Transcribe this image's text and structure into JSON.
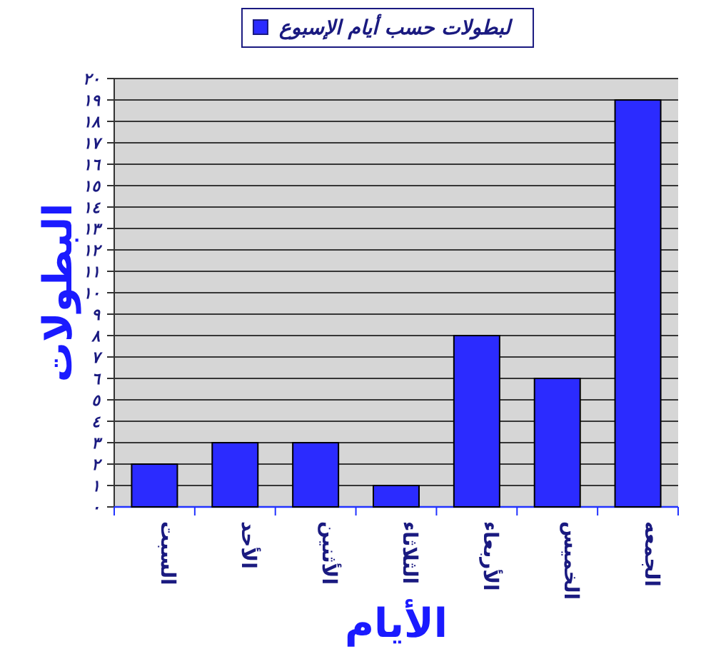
{
  "chart_data": {
    "type": "bar",
    "xlabel": "الأيام",
    "ylabel": "البطولات",
    "categories": [
      "السبت",
      "الأحد",
      "الأثنين",
      "الثلاثاء",
      "الأربعاء",
      "الخميس",
      "الجمعه"
    ],
    "series": [
      {
        "name": "لبطولات حسب أيام الإسبوع",
        "color": "#2b2bff",
        "values": [
          2,
          3,
          3,
          1,
          8,
          6,
          19
        ]
      }
    ],
    "ylim": [
      0,
      20
    ],
    "yticks": [
      {
        "value": 0,
        "label": "٠"
      },
      {
        "value": 1,
        "label": "١"
      },
      {
        "value": 2,
        "label": "٢"
      },
      {
        "value": 3,
        "label": "٣"
      },
      {
        "value": 4,
        "label": "٤"
      },
      {
        "value": 5,
        "label": "٥"
      },
      {
        "value": 6,
        "label": "٦"
      },
      {
        "value": 7,
        "label": "٧"
      },
      {
        "value": 8,
        "label": "٨"
      },
      {
        "value": 9,
        "label": "٩"
      },
      {
        "value": 10,
        "label": "١٠"
      },
      {
        "value": 11,
        "label": "١١"
      },
      {
        "value": 12,
        "label": "١٢"
      },
      {
        "value": 13,
        "label": "١٣"
      },
      {
        "value": 14,
        "label": "١٤"
      },
      {
        "value": 15,
        "label": "١٥"
      },
      {
        "value": 16,
        "label": "١٦"
      },
      {
        "value": 17,
        "label": "١٧"
      },
      {
        "value": 18,
        "label": "١٨"
      },
      {
        "value": 19,
        "label": "١٩"
      },
      {
        "value": 20,
        "label": "٢٠"
      }
    ],
    "grid": "y",
    "legend": "top"
  }
}
